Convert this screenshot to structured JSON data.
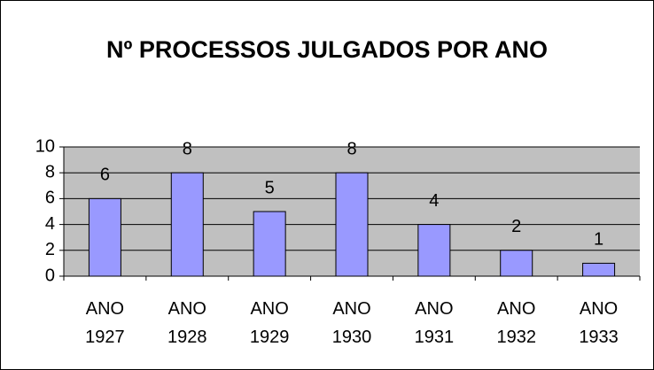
{
  "chart_data": {
    "type": "bar",
    "title": "Nº PROCESSOS JULGADOS POR ANO",
    "categories": [
      "ANO 1927",
      "ANO 1928",
      "ANO 1929",
      "ANO 1930",
      "ANO 1931",
      "ANO 1932",
      "ANO 1933"
    ],
    "values": [
      6,
      8,
      5,
      8,
      4,
      2,
      1
    ],
    "color": "#9999ff",
    "ylim": [
      0,
      10
    ],
    "yticks": [
      0,
      2,
      4,
      6,
      8,
      10
    ],
    "grid": true
  }
}
